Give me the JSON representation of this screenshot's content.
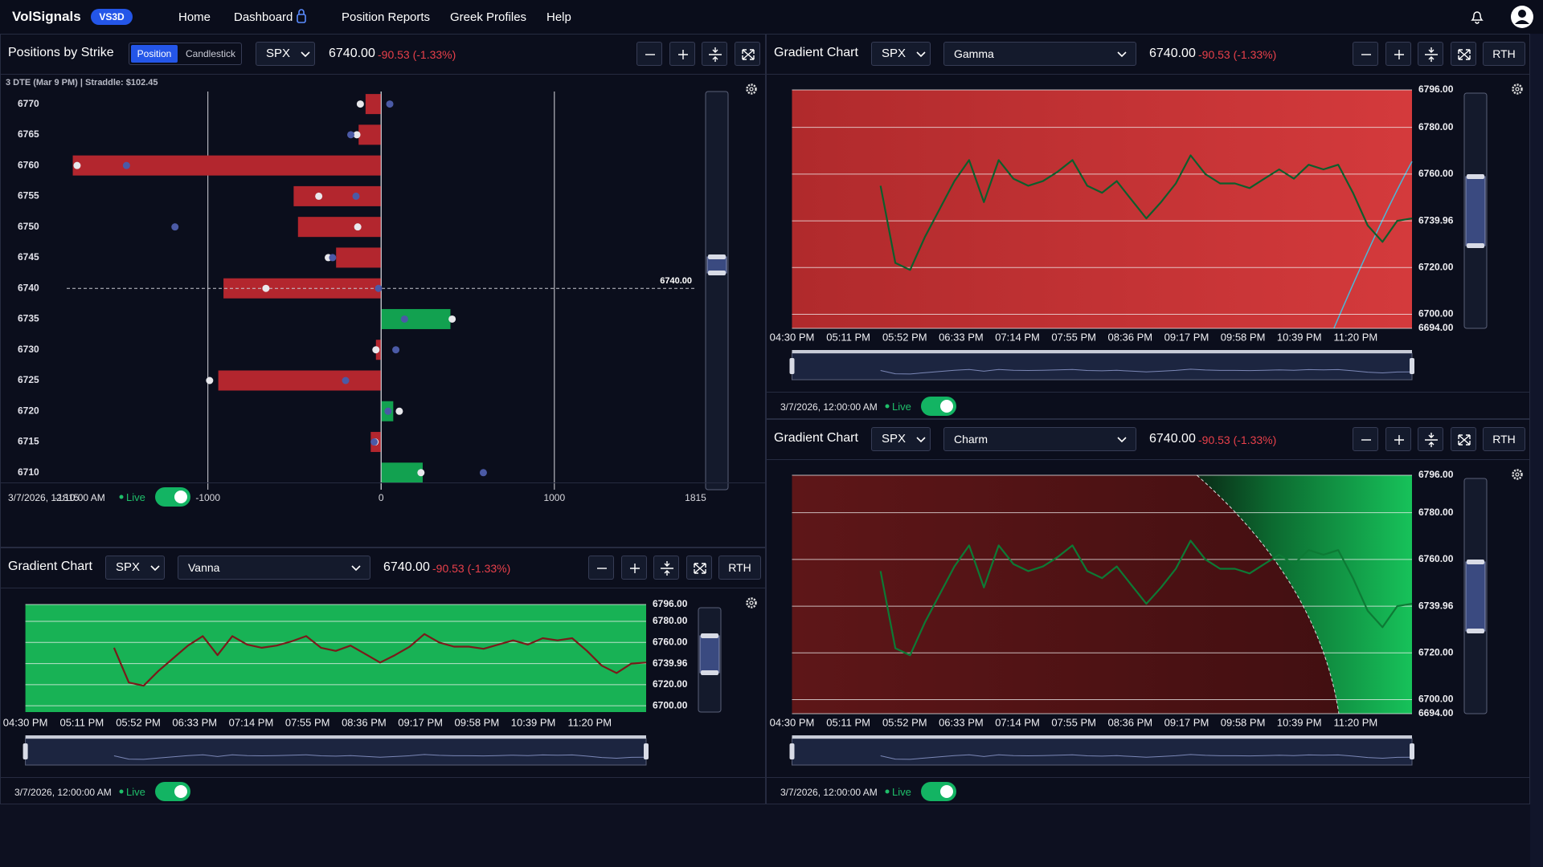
{
  "nav": {
    "brand": "VolSignals",
    "badge": "VS3D",
    "links": [
      "Home",
      "Dashboard",
      "Position Reports",
      "Greek Profiles",
      "Help"
    ]
  },
  "positions_panel": {
    "title": "Positions by Strike",
    "modes": [
      "Position",
      "Candlestick"
    ],
    "symbol": "SPX",
    "price": "6740.00",
    "change": "-90.53 (-1.33%)",
    "chart_data": {
      "type": "bar",
      "orientation": "horizontal",
      "subtitle": "3 DTE (Mar 9 PM) | Straddle: $102.45",
      "categories": [
        6770,
        6765,
        6760,
        6755,
        6750,
        6745,
        6740,
        6735,
        6730,
        6725,
        6720,
        6715,
        6710
      ],
      "values": [
        -90,
        -130,
        -1780,
        -505,
        -480,
        -260,
        -910,
        400,
        -30,
        -940,
        70,
        -60,
        240
      ],
      "positive_color": "#12a150",
      "negative_color": "#b3262e",
      "markers": [
        {
          "color": "#e8e8ec",
          "values": [
            -120,
            -140,
            -1755,
            -360,
            -135,
            -305,
            -665,
            410,
            -30,
            -990,
            105,
            -35,
            230
          ]
        },
        {
          "color": "#4b5aa6",
          "values": [
            50,
            -175,
            -1470,
            -145,
            -1190,
            -280,
            -15,
            135,
            85,
            -205,
            40,
            -40,
            590
          ]
        }
      ],
      "xlim": [
        -1815,
        1815
      ],
      "xticks": [
        -1815,
        -1000,
        0,
        1000,
        1815
      ],
      "reference_line": {
        "value": 6740,
        "label": "6740.00"
      }
    },
    "timestamp": "3/7/2026, 12:10:00 AM",
    "status": "Live"
  },
  "gradient_panels": [
    {
      "title": "Gradient Chart",
      "symbol": "SPX",
      "greek": "Gamma",
      "price": "6740.00",
      "change": "-90.53 (-1.33%)",
      "session": "RTH",
      "chart_data": {
        "type": "line",
        "color": "#0d5e2c",
        "x_labels": [
          "04:30 PM",
          "05:11 PM",
          "05:52 PM",
          "06:33 PM",
          "07:14 PM",
          "07:55 PM",
          "08:36 PM",
          "09:17 PM",
          "09:58 PM",
          "10:39 PM",
          "11:20 PM"
        ],
        "values": [
          null,
          null,
          null,
          null,
          null,
          null,
          6755,
          6722,
          6719,
          6733,
          6745,
          6757,
          6766,
          6748,
          6766,
          6758,
          6755,
          6757,
          6761,
          6766,
          6755,
          6752,
          6757,
          6749,
          6741,
          6748,
          6756,
          6768,
          6760,
          6756,
          6756,
          6754,
          6758,
          6762,
          6758,
          6764,
          6762,
          6764,
          6752,
          6738,
          6731,
          6740,
          6741
        ],
        "ylim": [
          6694,
          6796
        ],
        "yticks": [
          {
            "value": 6796,
            "label": "6796.00"
          },
          {
            "value": 6780,
            "label": "6780.00"
          },
          {
            "value": 6760,
            "label": "6760.00"
          },
          6739.96,
          {
            "value": 6720,
            "label": "6720.00"
          },
          {
            "value": 6700,
            "label": "6700.00"
          },
          {
            "value": 6694,
            "label": "6694.00"
          }
        ]
      },
      "timestamp": "3/7/2026, 12:00:00 AM",
      "status": "Live"
    },
    {
      "title": "Gradient Chart",
      "symbol": "SPX",
      "greek": "Vanna",
      "price": "6740.00",
      "change": "-90.53 (-1.33%)",
      "session": "RTH",
      "chart_data": {
        "type": "line",
        "color": "#7a1a1a",
        "x_labels": [
          "04:30 PM",
          "05:11 PM",
          "05:52 PM",
          "06:33 PM",
          "07:14 PM",
          "07:55 PM",
          "08:36 PM",
          "09:17 PM",
          "09:58 PM",
          "10:39 PM",
          "11:20 PM"
        ],
        "values": [
          null,
          null,
          null,
          null,
          null,
          null,
          6755,
          6722,
          6719,
          6733,
          6745,
          6757,
          6766,
          6748,
          6766,
          6758,
          6755,
          6757,
          6761,
          6766,
          6755,
          6752,
          6757,
          6749,
          6741,
          6748,
          6756,
          6768,
          6760,
          6756,
          6756,
          6754,
          6758,
          6762,
          6758,
          6764,
          6762,
          6764,
          6752,
          6738,
          6731,
          6740,
          6741
        ],
        "ylim": [
          6694,
          6796
        ],
        "yticks": [
          {
            "value": 6796,
            "label": "6796.00"
          },
          {
            "value": 6780,
            "label": "6780.00"
          },
          {
            "value": 6760,
            "label": "6760.00"
          },
          6739.96,
          {
            "value": 6720,
            "label": "6720.00"
          },
          {
            "value": 6700,
            "label": "6700.00"
          }
        ]
      },
      "timestamp": "3/7/2026, 12:00:00 AM",
      "status": "Live"
    },
    {
      "title": "Gradient Chart",
      "symbol": "SPX",
      "greek": "Charm",
      "price": "6740.00",
      "change": "-90.53 (-1.33%)",
      "session": "RTH",
      "chart_data": {
        "type": "line",
        "color": "#0d7a35",
        "x_labels": [
          "04:30 PM",
          "05:11 PM",
          "05:52 PM",
          "06:33 PM",
          "07:14 PM",
          "07:55 PM",
          "08:36 PM",
          "09:17 PM",
          "09:58 PM",
          "10:39 PM",
          "11:20 PM"
        ],
        "values": [
          null,
          null,
          null,
          null,
          null,
          null,
          6755,
          6722,
          6719,
          6733,
          6745,
          6757,
          6766,
          6748,
          6766,
          6758,
          6755,
          6757,
          6761,
          6766,
          6755,
          6752,
          6757,
          6749,
          6741,
          6748,
          6756,
          6768,
          6760,
          6756,
          6756,
          6754,
          6758,
          6762,
          6758,
          6764,
          6762,
          6764,
          6752,
          6738,
          6731,
          6740,
          6741
        ],
        "ylim": [
          6694,
          6796
        ],
        "yticks": [
          {
            "value": 6796,
            "label": "6796.00"
          },
          {
            "value": 6780,
            "label": "6780.00"
          },
          {
            "value": 6760,
            "label": "6760.00"
          },
          6739.96,
          {
            "value": 6720,
            "label": "6720.00"
          },
          {
            "value": 6700,
            "label": "6700.00"
          },
          {
            "value": 6694,
            "label": "6694.00"
          }
        ]
      },
      "timestamp": "3/7/2026, 12:00:00 AM",
      "status": "Live"
    }
  ]
}
